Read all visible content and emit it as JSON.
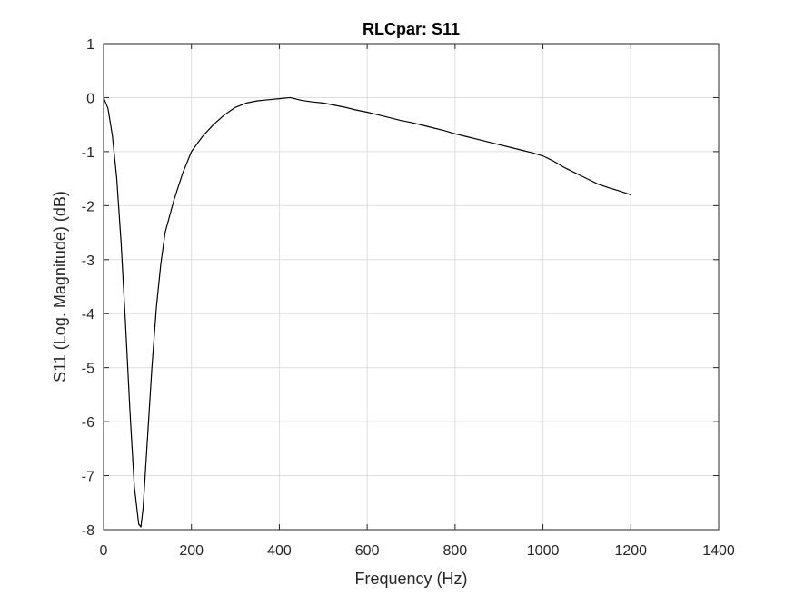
{
  "chart_data": {
    "type": "line",
    "title": "RLCpar: S11",
    "xlabel": "Frequency (Hz)",
    "ylabel": "S11 (Log. Magnitude) (dB)",
    "xlim": [
      0,
      1400
    ],
    "ylim": [
      -8,
      1
    ],
    "xticks": [
      0,
      200,
      400,
      600,
      800,
      1000,
      1200,
      1400
    ],
    "yticks": [
      1,
      0,
      -1,
      -2,
      -3,
      -4,
      -5,
      -6,
      -7,
      -8
    ],
    "grid": true,
    "line_color": "#000000",
    "series": [
      {
        "x": [
          0,
          10,
          20,
          30,
          40,
          50,
          60,
          70,
          80,
          85,
          90,
          100,
          110,
          120,
          130,
          140,
          160,
          180,
          200,
          225,
          250,
          275,
          300,
          325,
          350,
          375,
          400,
          425,
          450,
          475,
          500,
          525,
          550,
          575,
          600,
          625,
          650,
          675,
          700,
          725,
          750,
          775,
          800,
          825,
          850,
          875,
          900,
          925,
          950,
          975,
          1000,
          1025,
          1050,
          1075,
          1100,
          1125,
          1150,
          1175,
          1200
        ],
        "y": [
          0.0,
          -0.2,
          -0.7,
          -1.5,
          -2.7,
          -4.2,
          -5.8,
          -7.2,
          -7.9,
          -7.95,
          -7.6,
          -6.3,
          -5.0,
          -3.9,
          -3.1,
          -2.5,
          -1.9,
          -1.4,
          -1.0,
          -0.72,
          -0.5,
          -0.32,
          -0.18,
          -0.1,
          -0.06,
          -0.04,
          -0.02,
          0.0,
          -0.05,
          -0.08,
          -0.1,
          -0.14,
          -0.18,
          -0.23,
          -0.27,
          -0.32,
          -0.37,
          -0.42,
          -0.46,
          -0.51,
          -0.56,
          -0.61,
          -0.67,
          -0.72,
          -0.77,
          -0.82,
          -0.87,
          -0.92,
          -0.97,
          -1.02,
          -1.08,
          -1.18,
          -1.3,
          -1.4,
          -1.5,
          -1.6,
          -1.67,
          -1.73,
          -1.8
        ]
      }
    ]
  }
}
